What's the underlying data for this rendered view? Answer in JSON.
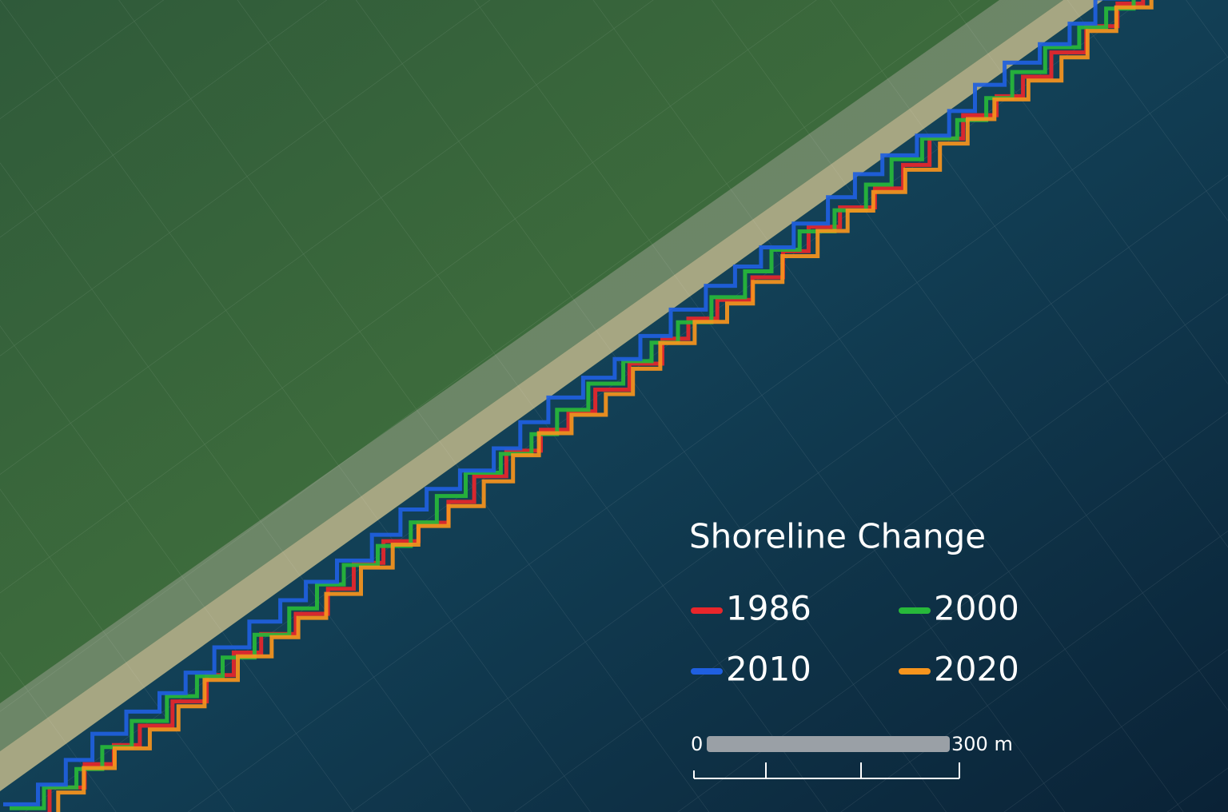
{
  "legend": {
    "title": "Shoreline Change",
    "items": [
      {
        "label": "1986",
        "color": "#e8262b"
      },
      {
        "label": "2000",
        "color": "#27b83a"
      },
      {
        "label": "2010",
        "color": "#1f5fe0"
      },
      {
        "label": "2020",
        "color": "#f7941d"
      }
    ]
  },
  "scale_bar": {
    "start": "0",
    "end": "300 m"
  }
}
